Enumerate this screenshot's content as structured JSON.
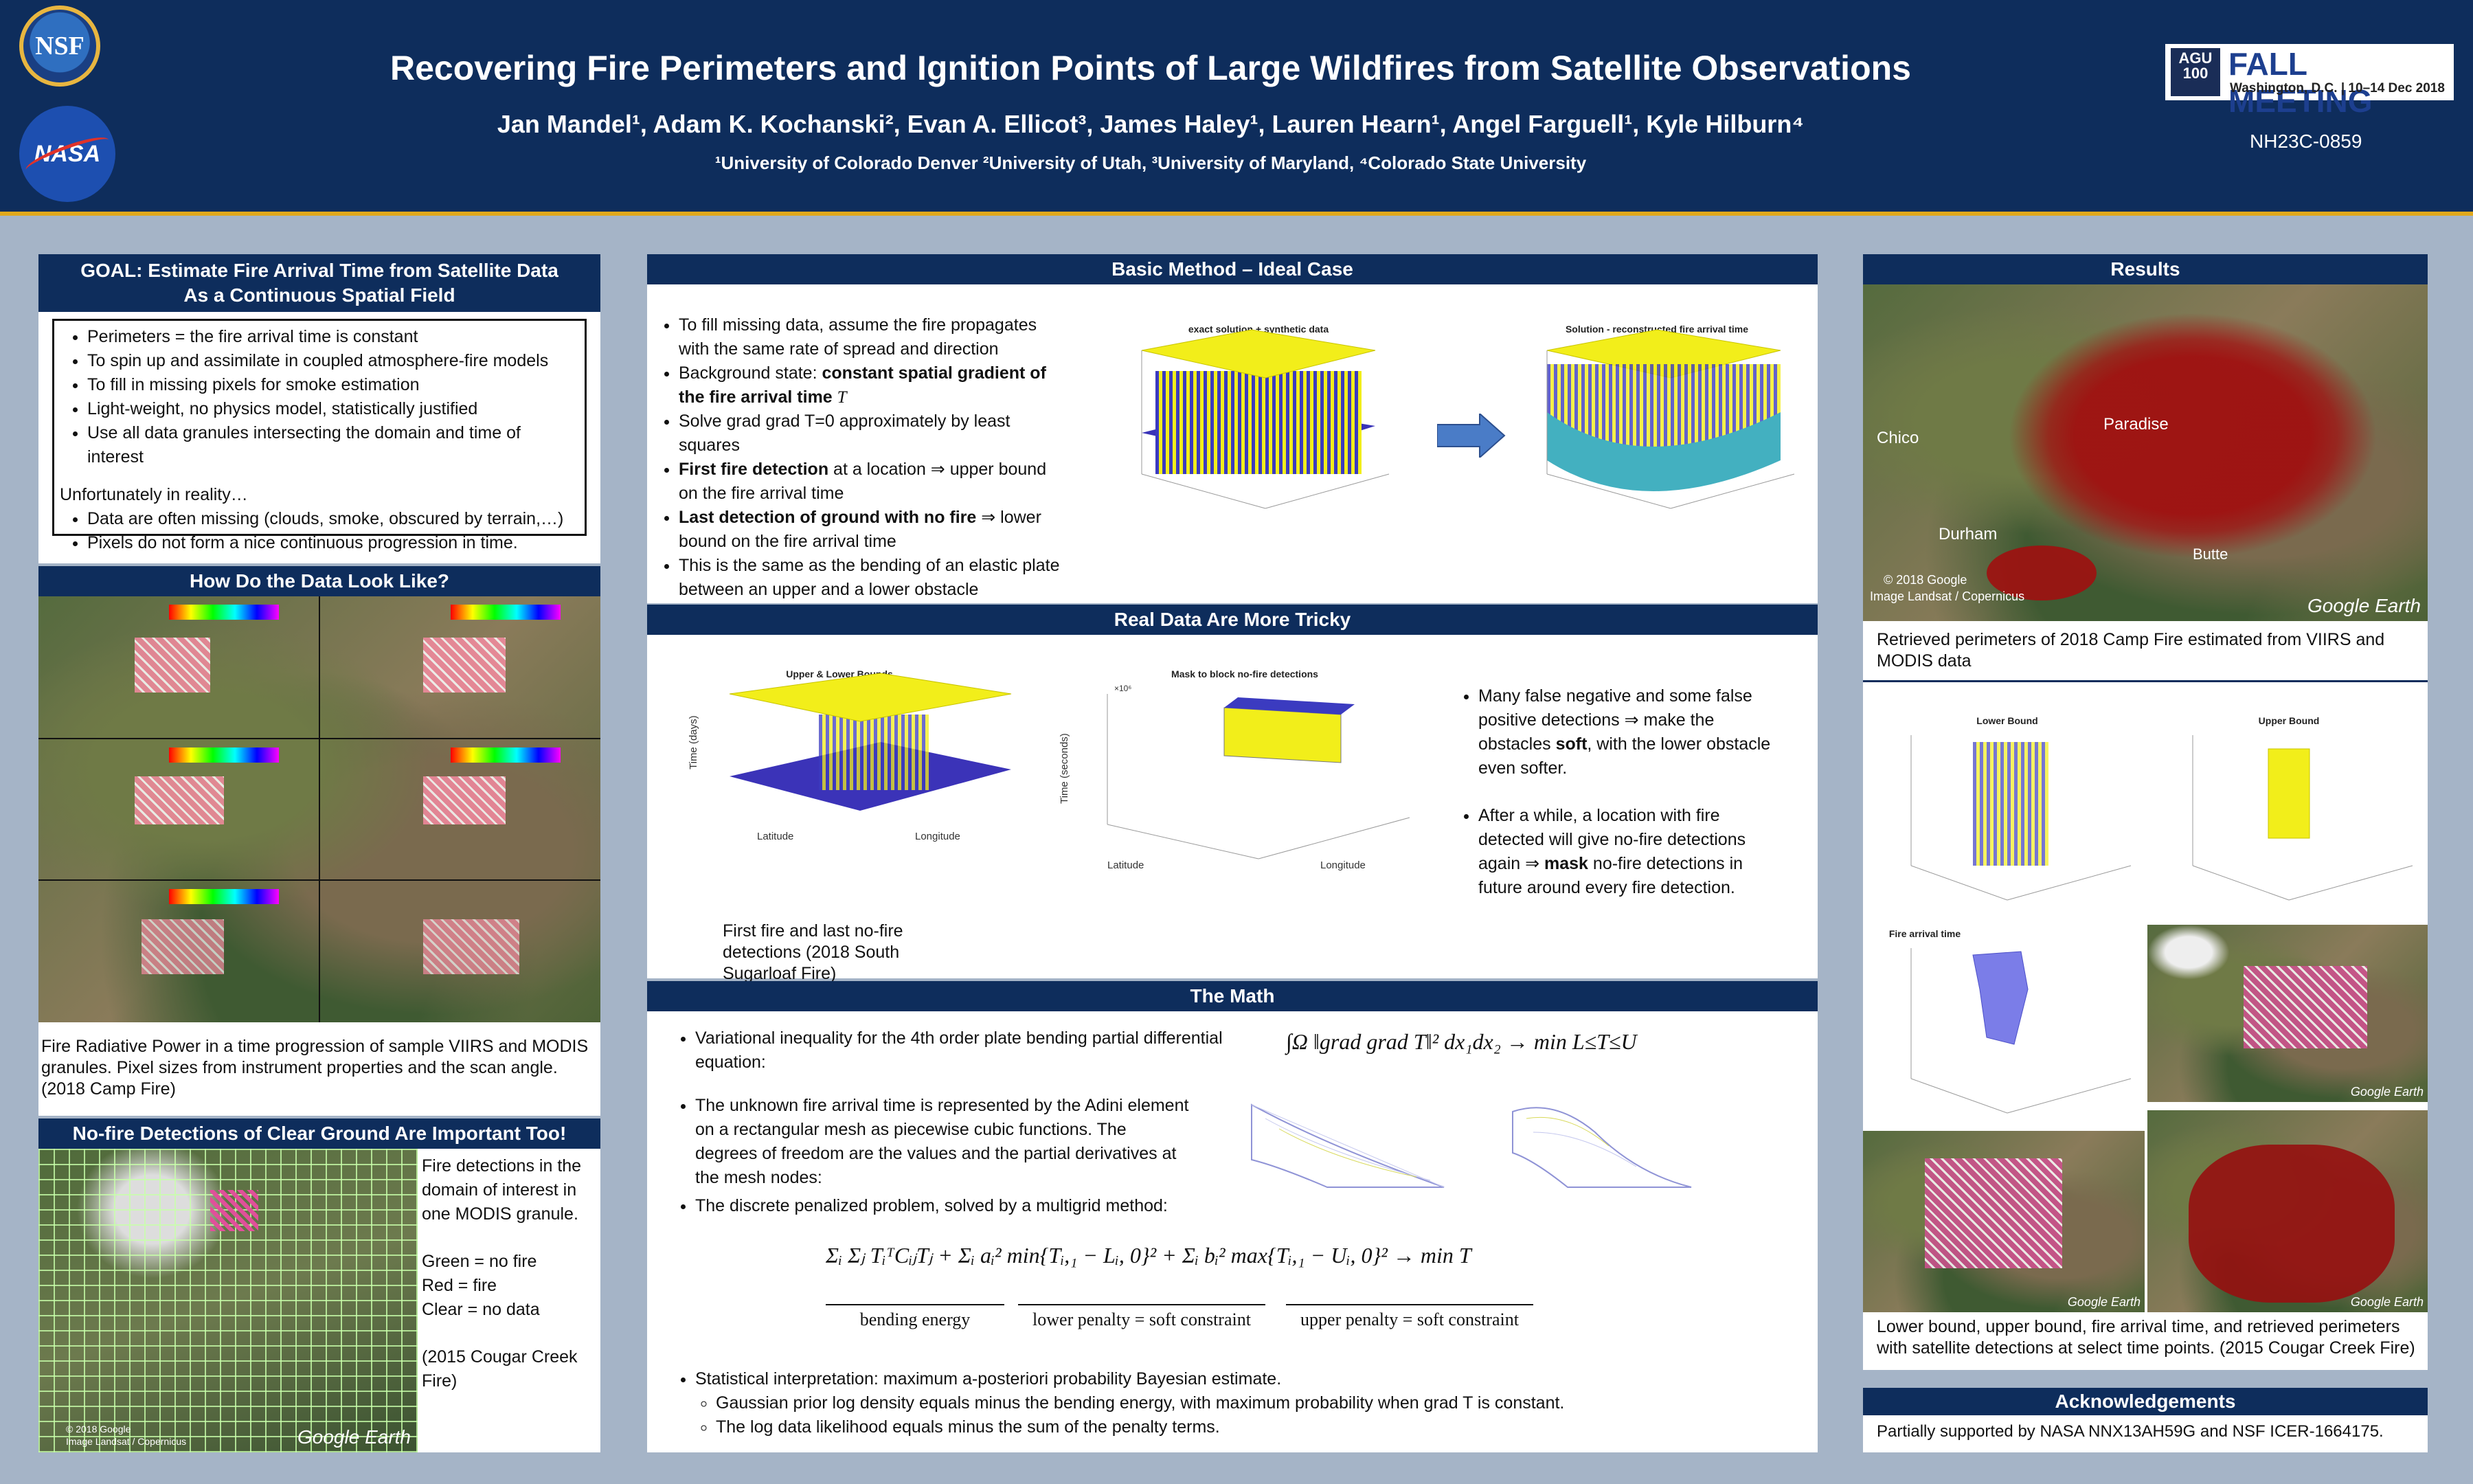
{
  "header": {
    "title": "Recovering Fire Perimeters and Ignition Points of Large Wildfires from Satellite Observations",
    "authors": "Jan Mandel¹, Adam K. Kochanski², Evan A. Ellicot³, James Haley¹, Lauren Hearn¹, Angel Farguell¹, Kyle Hilburn⁴",
    "affiliations": "¹University of Colorado Denver ²University of Utah, ³University of Maryland, ⁴Colorado State University",
    "nsf_logo": "NSF",
    "nasa_logo": "NASA",
    "agu_badge": "AGU 100",
    "meeting": "FALL MEETING",
    "meeting_location": "Washington, D.C. | 10–14 Dec 2018",
    "abstract_code": "NH23C-0859"
  },
  "goal": {
    "heading": "GOAL: Estimate Fire Arrival Time from Satellite Data As a Continuous Spatial Field",
    "bullets": [
      "Perimeters = the fire arrival time is constant",
      "To spin up and assimilate in coupled atmosphere-fire models",
      "To fill in missing pixels for smoke estimation",
      "Light-weight, no physics model, statistically justified",
      "Use all data granules intersecting the domain and time of interest"
    ],
    "reality_intro": "Unfortunately in reality…",
    "reality_bullets": [
      "Data are often missing (clouds, smoke, obscured by terrain,…)",
      "Pixels do not form a nice continuous progression in time."
    ]
  },
  "data_look": {
    "heading": "How Do the Data Look Like?",
    "caption": "Fire Radiative Power in a time progression of sample VIIRS and MODIS granules. Pixel sizes from instrument properties and the scan angle. (2018 Camp Fire)"
  },
  "nofire": {
    "heading": "No-fire Detections of Clear Ground Are Important Too!",
    "text1": "Fire detections in the domain of interest in one MODIS granule.",
    "green": "Green = no fire",
    "red": "Red = fire",
    "clear": "Clear = no data",
    "source": "(2015 Cougar Creek Fire)",
    "map_credit": "© 2018 Google",
    "map_credit2": "Image Landsat / Copernicus",
    "google_earth": "Google Earth"
  },
  "basic": {
    "heading": "Basic Method – Ideal Case",
    "b1": "To fill missing data, assume the fire propagates with the same rate of spread and direction",
    "b2_pre": "Background state: ",
    "b2_bold": "constant spatial gradient of the fire arrival time",
    "b2_sym": "T",
    "b3": "Solve grad grad T=0 approximately by least squares",
    "b4_bold": "First fire detection",
    "b4_rest": " at a location ⇒ upper bound on the fire arrival time",
    "b5_bold": "Last detection of ground with no fire",
    "b5_rest": " ⇒ lower bound on the fire arrival time",
    "b6": "This is the same as the bending of an elastic plate between an upper and a lower obstacle",
    "plot1_title": "exact solution + synthetic data",
    "plot2_title": "Solution - reconstructed fire arrival time"
  },
  "tricky": {
    "heading": "Real Data Are More Tricky",
    "plot1_title": "Upper & Lower Bounds",
    "plot1_ylabel": "Time (days)",
    "plot1_xlabel1": "Latitude",
    "plot1_xlabel2": "Longitude",
    "plot2_title": "Mask to block no-fire detections",
    "plot2_ylabel": "Time (seconds)",
    "plot2_exp": "×10⁶",
    "caption": "First fire and last no-fire detections (2018 South Sugarloaf Fire)",
    "b1_pre": "Many false negative and some false positive detections ⇒ make the obstacles ",
    "b1_bold": "soft",
    "b1_post": ", with the lower obstacle even softer.",
    "b2_pre": "After a while, a location with fire detected will give no-fire detections again ⇒ ",
    "b2_bold": "mask",
    "b2_post": " no-fire detections in future around every fire detection."
  },
  "math": {
    "heading": "The Math",
    "b1": "Variational inequality for the 4th order plate bending partial differential equation:",
    "eq1": "∫Ω ‖grad grad T‖² dx₁dx₂ → min L≤T≤U",
    "b2": "The unknown fire arrival time is represented by the Adini element on a rectangular mesh as piecewise cubic functions. The degrees of freedom are the values and the partial derivatives at the mesh nodes:",
    "b3": "The discrete penalized problem, solved by a multigrid method:",
    "eq2": "Σᵢ Σⱼ TᵢᵀCᵢⱼTⱼ + Σᵢ aᵢ² min{Tᵢ,₁ − Lᵢ, 0}² + Σᵢ bᵢ² max{Tᵢ,₁ − Uᵢ, 0}² → min T",
    "brace1": "bending energy",
    "brace2": "lower penalty = soft constraint",
    "brace3": "upper penalty = soft constraint",
    "b4": "Statistical interpretation: maximum a-posteriori probability Bayesian estimate.",
    "b4a": "Gaussian prior log density equals minus the bending energy, with maximum probability when grad T  is constant.",
    "b4b": "The log data likelihood equals minus the sum of the penalty terms."
  },
  "results": {
    "heading": "Results",
    "label_chico": "Chico",
    "label_paradise": "Paradise",
    "label_durham": "Durham",
    "label_butte": "Butte",
    "credit": "© 2018 Google",
    "credit2": "Image Landsat / Copernicus",
    "google_earth": "Google Earth",
    "caption1": "Retrieved perimeters of 2018 Camp Fire estimated from VIIRS and MODIS data",
    "plot_lower": "Lower Bound",
    "plot_upper": "Upper Bound",
    "plot_arrival": "Fire arrival time",
    "caption2": "Lower bound, upper bound, fire arrival time, and retrieved perimeters with satellite detections at select time points. (2015 Cougar Creek Fire)"
  },
  "ack": {
    "heading": "Acknowledgements",
    "text": "Partially supported by NASA NNX13AH59G and NSF ICER-1664175."
  },
  "colors": {
    "header_bg": "#0e2d5c",
    "accent": "#e0a81c",
    "fire_red": "#a01010",
    "surface_yellow": "#f2ee1a",
    "surface_blue": "#3b3bc0"
  }
}
